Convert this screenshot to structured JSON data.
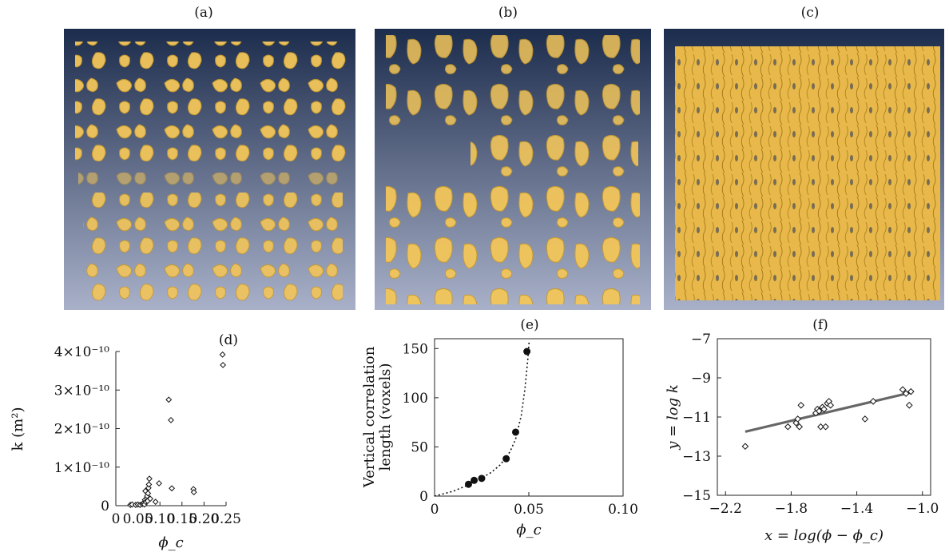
{
  "panels": {
    "a": {
      "label": "(a)"
    },
    "b": {
      "label": "(b)"
    },
    "c": {
      "label": "(c)"
    },
    "d": {
      "label": "(d)"
    },
    "e": {
      "label": "(e)"
    },
    "f": {
      "label": "(f)"
    }
  },
  "render_style": {
    "background_top": "#1c2c4c",
    "background_bottom": "#a9b1c9",
    "blob_color": "#f2c55a",
    "blob_shade": "#c79a2c"
  },
  "chart_data": [
    {
      "id": "d",
      "type": "scatter",
      "marker": "open-diamond",
      "xlabel": "ϕ_c",
      "ylabel": "k (m²)",
      "xlim": [
        0,
        0.25
      ],
      "ylim": [
        0,
        4e-10
      ],
      "xticks": [
        0,
        0.05,
        0.1,
        0.15,
        0.2,
        0.25
      ],
      "xtick_labels": [
        "0",
        "0.05",
        "0.10",
        "0.15",
        "0.20",
        "0.25"
      ],
      "yticks": [
        0,
        1e-10,
        2e-10,
        3e-10,
        4e-10
      ],
      "ytick_labels": [
        "0",
        "1×10⁻¹⁰",
        "2×10⁻¹⁰",
        "3×10⁻¹⁰",
        "4×10⁻¹⁰"
      ],
      "points": [
        [
          0.033,
          2e-12
        ],
        [
          0.037,
          3e-12
        ],
        [
          0.045,
          2e-12
        ],
        [
          0.05,
          3e-12
        ],
        [
          0.055,
          2e-12
        ],
        [
          0.06,
          4e-12
        ],
        [
          0.062,
          6e-12
        ],
        [
          0.064,
          8e-12
        ],
        [
          0.065,
          3e-12
        ],
        [
          0.066,
          1.5e-11
        ],
        [
          0.067,
          3.8e-11
        ],
        [
          0.068,
          1e-11
        ],
        [
          0.07,
          2e-11
        ],
        [
          0.071,
          2.5e-11
        ],
        [
          0.072,
          1.2e-11
        ],
        [
          0.073,
          3.2e-11
        ],
        [
          0.074,
          4.6e-11
        ],
        [
          0.075,
          5.5e-11
        ],
        [
          0.076,
          7e-11
        ],
        [
          0.078,
          1.8e-11
        ],
        [
          0.09,
          1e-11
        ],
        [
          0.098,
          5.8e-11
        ],
        [
          0.12,
          2.75e-10
        ],
        [
          0.125,
          2.22e-10
        ],
        [
          0.127,
          4.5e-11
        ],
        [
          0.176,
          4.3e-11
        ],
        [
          0.177,
          3.5e-11
        ],
        [
          0.242,
          3.92e-10
        ],
        [
          0.243,
          3.65e-10
        ]
      ]
    },
    {
      "id": "e",
      "type": "line",
      "xlabel": "ϕ_c",
      "ylabel_line1": "Vertical correlation",
      "ylabel_line2": "length (voxels)",
      "xlim": [
        0,
        0.1
      ],
      "ylim": [
        0,
        160
      ],
      "xticks": [
        0,
        0.05,
        0.1
      ],
      "xtick_labels": [
        "0",
        "0.05",
        "0.10"
      ],
      "yticks": [
        0,
        50,
        100,
        150
      ],
      "ytick_labels": [
        "0",
        "50",
        "100",
        "150"
      ],
      "points": [
        [
          0.018,
          12
        ],
        [
          0.021,
          16
        ],
        [
          0.025,
          18
        ],
        [
          0.038,
          38
        ],
        [
          0.043,
          65
        ],
        [
          0.049,
          147
        ]
      ],
      "fit_curve": [
        [
          0,
          0
        ],
        [
          0.01,
          5
        ],
        [
          0.02,
          13
        ],
        [
          0.03,
          24
        ],
        [
          0.035,
          32
        ],
        [
          0.04,
          45
        ],
        [
          0.043,
          58
        ],
        [
          0.046,
          82
        ],
        [
          0.048,
          110
        ],
        [
          0.0495,
          140
        ],
        [
          0.0502,
          158
        ]
      ]
    },
    {
      "id": "f",
      "type": "scatter",
      "marker": "open-diamond",
      "xlabel": "x = log(ϕ − ϕ_c)",
      "ylabel": "y = log k",
      "xlim": [
        -2.25,
        -0.95
      ],
      "ylim": [
        -15,
        -7
      ],
      "xticks": [
        -2.2,
        -1.8,
        -1.4,
        -1.0
      ],
      "xtick_labels": [
        "−2.2",
        "−1.8",
        "−1.4",
        "−1.0"
      ],
      "yticks": [
        -15,
        -13,
        -11,
        -9,
        -7
      ],
      "ytick_labels": [
        "−15",
        "−13",
        "−11",
        "−9",
        "−7"
      ],
      "points": [
        [
          -2.08,
          -12.5
        ],
        [
          -1.82,
          -11.5
        ],
        [
          -1.77,
          -11.3
        ],
        [
          -1.76,
          -11.1
        ],
        [
          -1.75,
          -11.5
        ],
        [
          -1.74,
          -10.4
        ],
        [
          -1.65,
          -10.8
        ],
        [
          -1.64,
          -10.6
        ],
        [
          -1.63,
          -10.7
        ],
        [
          -1.62,
          -11.5
        ],
        [
          -1.61,
          -10.5
        ],
        [
          -1.6,
          -10.6
        ],
        [
          -1.58,
          -10.3
        ],
        [
          -1.57,
          -10.2
        ],
        [
          -1.56,
          -10.4
        ],
        [
          -1.59,
          -11.5
        ],
        [
          -1.35,
          -11.1
        ],
        [
          -1.3,
          -10.2
        ],
        [
          -1.12,
          -9.6
        ],
        [
          -1.1,
          -9.8
        ],
        [
          -1.08,
          -10.4
        ],
        [
          -1.07,
          -9.7
        ]
      ],
      "fit_line": [
        [
          -2.08,
          -11.75
        ],
        [
          -1.07,
          -9.75
        ]
      ]
    }
  ]
}
